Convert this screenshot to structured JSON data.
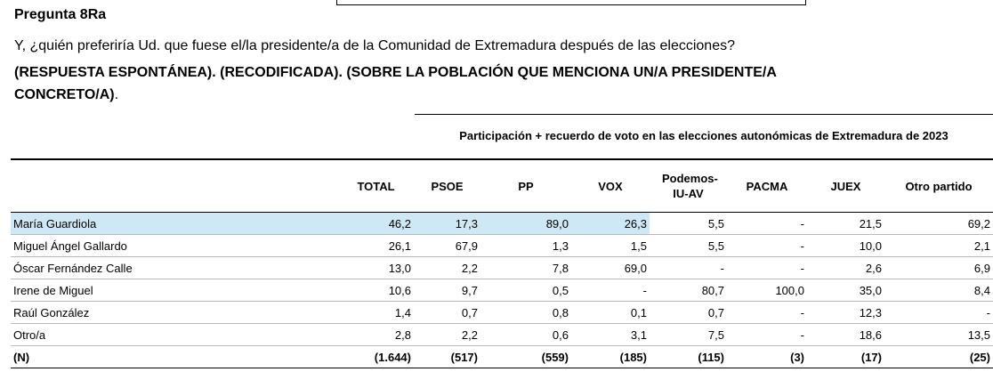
{
  "header": {
    "title": "Pregunta 8Ra",
    "question": "Y, ¿quién preferiría Ud. que fuese el/la presidente/a de la Comunidad de Extremadura después de las elecciones?",
    "note": "(RESPUESTA ESPONTÁNEA). (RECODIFICADA). (SOBRE LA POBLACIÓN QUE MENCIONA UN/A PRESIDENTE/A CONCRETO/A)",
    "note_end": "."
  },
  "table": {
    "banner": "Participación + recuerdo de voto en las elecciones autonómicas de Extremadura de 2023",
    "columns": [
      "TOTAL",
      "PSOE",
      "PP",
      "VOX",
      "Podemos-IU-AV",
      "PACMA",
      "JUEX",
      "Otro partido"
    ],
    "rows": [
      [
        "María Guardiola",
        "46,2",
        "17,3",
        "89,0",
        "26,3",
        "5,5",
        "-",
        "21,5",
        "69,2"
      ],
      [
        "Miguel Ángel Gallardo",
        "26,1",
        "67,9",
        "1,3",
        "1,5",
        "5,5",
        "-",
        "10,0",
        "2,1"
      ],
      [
        "Óscar Fernández Calle",
        "13,0",
        "2,2",
        "7,8",
        "69,0",
        "-",
        "-",
        "2,6",
        "6,9"
      ],
      [
        "Irene de Miguel",
        "10,6",
        "9,7",
        "0,5",
        "-",
        "80,7",
        "100,0",
        "35,0",
        "8,4"
      ],
      [
        "Raúl González",
        "1,4",
        "0,7",
        "0,8",
        "0,1",
        "0,7",
        "-",
        "12,3",
        "-"
      ],
      [
        "Otro/a",
        "2,8",
        "2,2",
        "0,6",
        "3,1",
        "7,5",
        "-",
        "18,6",
        "13,5"
      ],
      [
        "(N)",
        "(1.644)",
        "(517)",
        "(559)",
        "(185)",
        "(115)",
        "(3)",
        "(17)",
        "(25)"
      ]
    ]
  }
}
